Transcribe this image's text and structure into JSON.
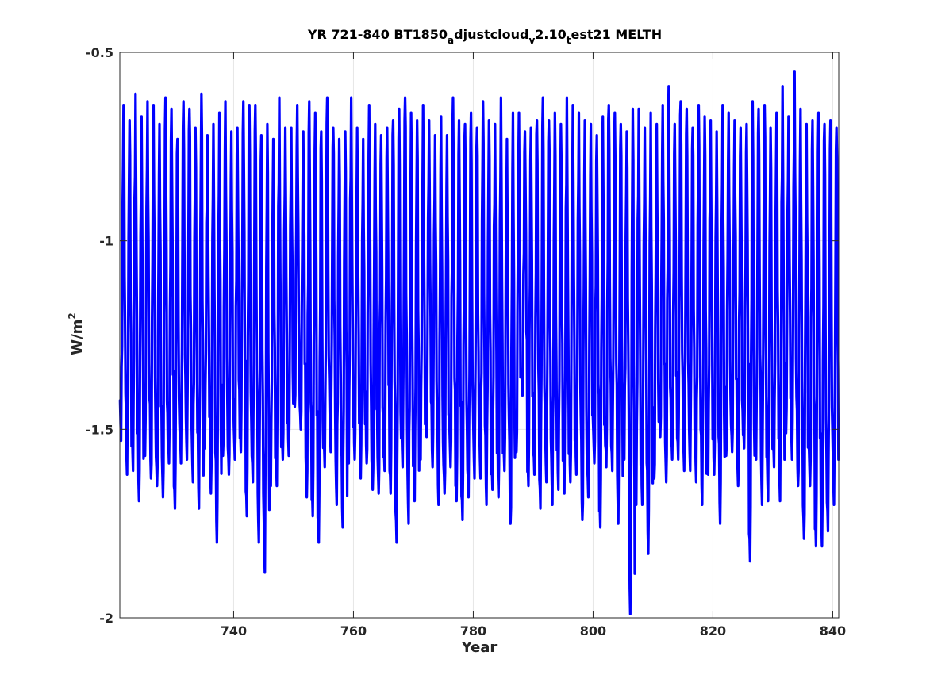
{
  "chart_data": {
    "type": "line",
    "title": {
      "parts": [
        {
          "text": "YR 721-840 BT1850",
          "sub": false
        },
        {
          "text": "a",
          "sub": true
        },
        {
          "text": "djustcloud",
          "sub": false
        },
        {
          "text": "v",
          "sub": true
        },
        {
          "text": "2.10",
          "sub": false
        },
        {
          "text": "t",
          "sub": true
        },
        {
          "text": "est21 MELTH",
          "sub": false
        }
      ]
    },
    "xlabel": "Year",
    "ylabel": {
      "base": "W/m",
      "sup": "2"
    },
    "xlim": [
      721,
      841
    ],
    "ylim": [
      -2,
      -0.5
    ],
    "xticks": [
      740,
      760,
      780,
      800,
      820,
      840
    ],
    "xtick_labels": [
      "740",
      "760",
      "780",
      "800",
      "820",
      "840"
    ],
    "yticks": [
      -2,
      -1.5,
      -1,
      -0.5
    ],
    "ytick_labels": [
      "-2",
      "-1.5",
      "-1",
      "-0.5"
    ],
    "grid": true,
    "line_color": "#0000ff",
    "series": [
      {
        "sampling": "monthly",
        "start": 721,
        "annual_min": [
          -1.53,
          -1.62,
          -1.61,
          -1.69,
          -1.57,
          -1.63,
          -1.65,
          -1.68,
          -1.59,
          -1.71,
          -1.59,
          -1.58,
          -1.64,
          -1.71,
          -1.55,
          -1.67,
          -1.8,
          -1.57,
          -1.62,
          -1.58,
          -1.56,
          -1.73,
          -1.64,
          -1.8,
          -1.88,
          -1.65,
          -1.65,
          -1.58,
          -1.57,
          -1.44,
          -1.5,
          -1.68,
          -1.73,
          -1.8,
          -1.6,
          -1.56,
          -1.7,
          -1.76,
          -1.59,
          -1.58,
          -1.63,
          -1.59,
          -1.66,
          -1.67,
          -1.61,
          -1.67,
          -1.8,
          -1.6,
          -1.75,
          -1.69,
          -1.58,
          -1.52,
          -1.6,
          -1.7,
          -1.67,
          -1.6,
          -1.69,
          -1.74,
          -1.68,
          -1.63,
          -1.63,
          -1.7,
          -1.66,
          -1.68,
          -1.61,
          -1.75,
          -1.56,
          -1.41,
          -1.65,
          -1.62,
          -1.71,
          -1.64,
          -1.7,
          -1.66,
          -1.67,
          -1.64,
          -1.62,
          -1.74,
          -1.68,
          -1.59,
          -1.76,
          -1.6,
          -1.61,
          -1.75,
          -1.58,
          -1.99,
          -1.7,
          -1.7,
          -1.83,
          -1.63,
          -1.52,
          -1.64,
          -1.58,
          -1.58,
          -1.61,
          -1.61,
          -1.64,
          -1.7,
          -1.62,
          -1.62,
          -1.75,
          -1.57,
          -1.56,
          -1.65,
          -1.55,
          -1.85,
          -1.58,
          -1.7,
          -1.69,
          -1.6,
          -1.69,
          -1.51,
          -1.58,
          -1.65,
          -1.79,
          -1.65,
          -1.81,
          -1.81,
          -1.77,
          -1.7
        ],
        "annual_max": [
          -0.64,
          -0.68,
          -0.61,
          -0.67,
          -0.63,
          -0.64,
          -0.69,
          -0.62,
          -0.65,
          -0.73,
          -0.63,
          -0.65,
          -0.7,
          -0.61,
          -0.72,
          -0.69,
          -0.66,
          -0.63,
          -0.71,
          -0.7,
          -0.63,
          -0.64,
          -0.64,
          -0.72,
          -0.69,
          -0.73,
          -0.62,
          -0.7,
          -0.7,
          -0.64,
          -0.71,
          -0.63,
          -0.66,
          -0.71,
          -0.62,
          -0.7,
          -0.73,
          -0.71,
          -0.62,
          -0.7,
          -0.73,
          -0.64,
          -0.69,
          -0.72,
          -0.7,
          -0.68,
          -0.65,
          -0.62,
          -0.66,
          -0.68,
          -0.64,
          -0.68,
          -0.72,
          -0.67,
          -0.72,
          -0.62,
          -0.68,
          -0.69,
          -0.66,
          -0.7,
          -0.63,
          -0.68,
          -0.69,
          -0.62,
          -0.73,
          -0.66,
          -0.66,
          -0.71,
          -0.7,
          -0.68,
          -0.62,
          -0.68,
          -0.66,
          -0.69,
          -0.62,
          -0.64,
          -0.66,
          -0.68,
          -0.69,
          -0.72,
          -0.67,
          -0.64,
          -0.66,
          -0.69,
          -0.71,
          -0.65,
          -0.65,
          -0.7,
          -0.66,
          -0.69,
          -0.64,
          -0.59,
          -0.69,
          -0.63,
          -0.65,
          -0.7,
          -0.64,
          -0.67,
          -0.68,
          -0.71,
          -0.64,
          -0.66,
          -0.68,
          -0.7,
          -0.69,
          -0.63,
          -0.65,
          -0.64,
          -0.7,
          -0.66,
          -0.59,
          -0.67,
          -0.55,
          -0.65,
          -0.69,
          -0.68,
          -0.66,
          -0.69,
          -0.68,
          -0.7
        ]
      }
    ]
  }
}
